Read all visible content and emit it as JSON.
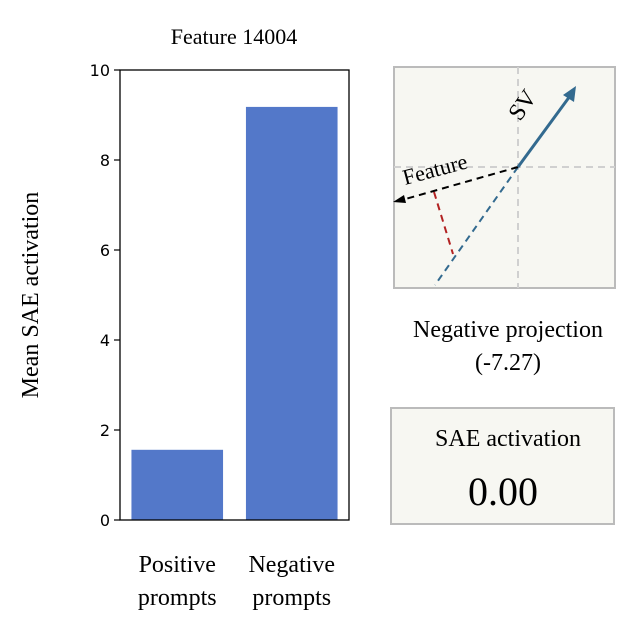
{
  "chart_data": [
    {
      "type": "bar",
      "title": "Feature 14004",
      "xlabel": "",
      "ylabel": "Mean SAE activation",
      "categories": [
        "Positive\nprompts",
        "Negative\nprompts"
      ],
      "category_lines": [
        [
          "Positive",
          "prompts"
        ],
        [
          "Negative",
          "prompts"
        ]
      ],
      "values": [
        1.56,
        9.18
      ],
      "ylim": [
        0,
        10
      ],
      "yticks": [
        0,
        2,
        4,
        6,
        8,
        10
      ],
      "grid": false,
      "bar_color": "#5378c9"
    },
    {
      "type": "diagram",
      "title": "Negative projection",
      "subtitle": "(-7.27)",
      "vectors": [
        {
          "name": "SV",
          "label": "SV",
          "color": "#336a8f",
          "style": "solid"
        },
        {
          "name": "Feature",
          "label": "Feature",
          "color": "#000000",
          "style": "dashed"
        }
      ],
      "projection_value": -7.27,
      "projection_color": "#b22222",
      "background": "#f7f7f2"
    }
  ],
  "activation_box": {
    "label": "SAE activation",
    "value": "0.00"
  }
}
